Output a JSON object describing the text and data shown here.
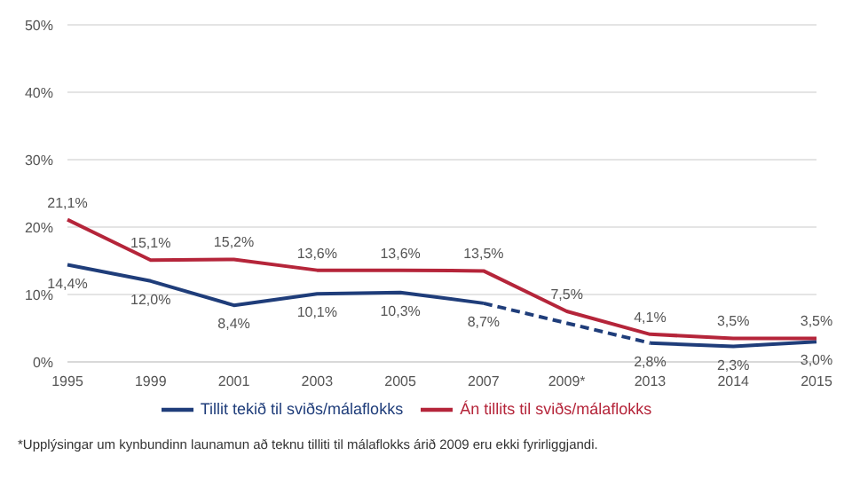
{
  "chart_data": {
    "type": "line",
    "categories": [
      "1995",
      "1999",
      "2001",
      "2003",
      "2005",
      "2007",
      "2009*",
      "2013",
      "2014",
      "2015"
    ],
    "series": [
      {
        "name": "Tillit tekið til sviðs/málaflokks",
        "color": "#1f3d7a",
        "values": [
          14.4,
          12.0,
          8.4,
          10.1,
          10.3,
          8.7,
          null,
          2.8,
          2.3,
          3.0
        ],
        "value_labels": [
          "14,4%",
          "12,0%",
          "8,4%",
          "10,1%",
          "10,3%",
          "8,7%",
          null,
          "2,8%",
          "2,3%",
          "3,0%"
        ]
      },
      {
        "name": "Án tillits til sviðs/málaflokks",
        "color": "#b5253a",
        "values": [
          21.1,
          15.1,
          15.2,
          13.6,
          13.6,
          13.5,
          7.5,
          4.1,
          3.5,
          3.5
        ],
        "value_labels": [
          "21,1%",
          "15,1%",
          "15,2%",
          "13,6%",
          "13,6%",
          "13,5%",
          "7,5%",
          "4,1%",
          "3,5%",
          "3,5%"
        ]
      }
    ],
    "ylim": [
      0,
      50
    ],
    "yticks": [
      {
        "value": 0,
        "label": "0%"
      },
      {
        "value": 10,
        "label": "10%"
      },
      {
        "value": 20,
        "label": "20%"
      },
      {
        "value": 30,
        "label": "30%"
      },
      {
        "value": 40,
        "label": "40%"
      },
      {
        "value": 50,
        "label": "50%"
      }
    ],
    "grid": "y",
    "legend": "bottom",
    "marker": "none",
    "line_style": "solid",
    "annotations": [
      "*Upplýsingar um kynbundinn launamun að teknu tilliti til málaflokks árið 2009 eru ekki fyrirliggjandi."
    ]
  }
}
